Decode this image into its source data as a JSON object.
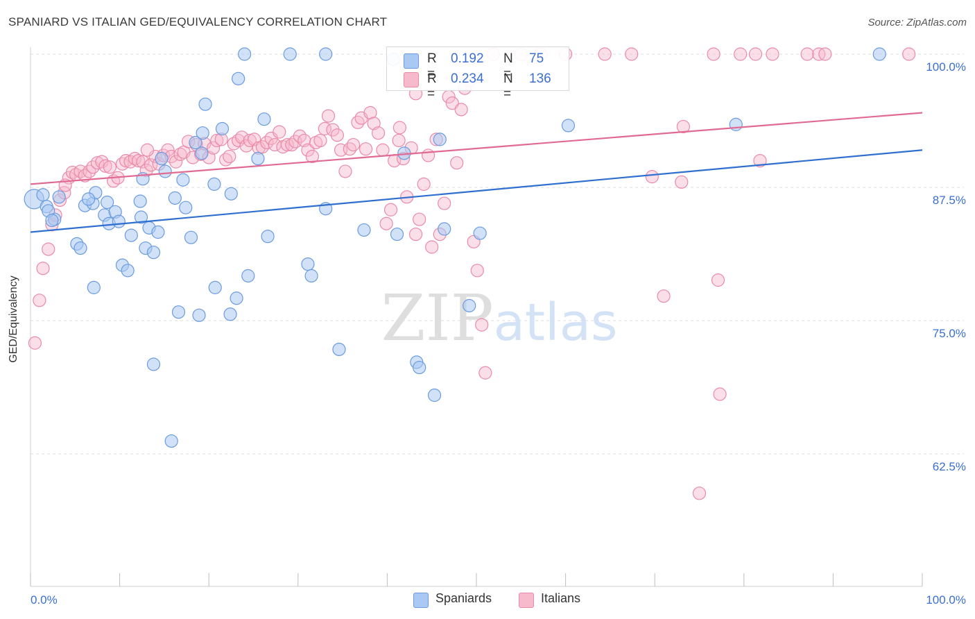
{
  "title": "SPANIARD VS ITALIAN GED/EQUIVALENCY CORRELATION CHART",
  "source": "Source: ZipAtlas.com",
  "watermark": "ZIPatlas",
  "stats": {
    "r_label": "R =",
    "n_label": "N =",
    "spaniards": {
      "r": "0.192",
      "n": "75"
    },
    "italians": {
      "r": "0.234",
      "n": "136"
    }
  },
  "legend": {
    "spaniards": "Spaniards",
    "italians": "Italians"
  },
  "colors": {
    "spaniards_fill": "#a9c9f2",
    "spaniards_stroke": "#6a9be0",
    "spaniards_line": "#2e6fcf",
    "italians_fill": "#f7b9cc",
    "italians_stroke": "#ea8aa8",
    "italians_line": "#e06a93",
    "axis_text": "#3a6fd1",
    "grid": "#dddddd"
  },
  "chart_data": {
    "type": "scatter",
    "title": "SPANIARD VS ITALIAN GED/EQUIVALENCY CORRELATION CHART",
    "xlabel": "",
    "ylabel": "GED/Equivalency",
    "xlim": [
      0,
      100
    ],
    "ylim": [
      50,
      101.5
    ],
    "x_tick_labels": [
      "0.0%",
      "100.0%"
    ],
    "y_ticks": [
      62.5,
      75.0,
      87.5,
      100.0
    ],
    "y_tick_labels": [
      "62.5%",
      "75.0%",
      "87.5%",
      "100.0%"
    ],
    "grid": "horizontal dashed",
    "legend_position": "bottom-center",
    "series": [
      {
        "name": "Spaniards",
        "r": 0.192,
        "n": 75,
        "trend": [
          [
            0,
            83.3
          ],
          [
            100,
            91.0
          ]
        ],
        "points": [
          [
            0.4,
            86.4
          ],
          [
            1.4,
            86.8
          ],
          [
            1.8,
            85.7
          ],
          [
            2.7,
            84.5
          ],
          [
            3.2,
            86.6
          ],
          [
            2.0,
            85.3
          ],
          [
            5.2,
            82.2
          ],
          [
            5.6,
            81.8
          ],
          [
            6.1,
            85.8
          ],
          [
            7.0,
            86.0
          ],
          [
            7.3,
            87.0
          ],
          [
            7.1,
            78.1
          ],
          [
            8.3,
            84.9
          ],
          [
            8.8,
            84.1
          ],
          [
            9.5,
            85.2
          ],
          [
            9.9,
            84.3
          ],
          [
            10.3,
            80.2
          ],
          [
            10.9,
            79.7
          ],
          [
            11.3,
            83.0
          ],
          [
            12.3,
            86.2
          ],
          [
            12.4,
            84.7
          ],
          [
            12.9,
            81.8
          ],
          [
            13.3,
            83.7
          ],
          [
            13.8,
            81.4
          ],
          [
            14.3,
            83.3
          ],
          [
            15.1,
            89.0
          ],
          [
            13.8,
            70.9
          ],
          [
            15.8,
            63.7
          ],
          [
            16.2,
            86.5
          ],
          [
            16.6,
            75.8
          ],
          [
            17.1,
            88.2
          ],
          [
            17.4,
            85.6
          ],
          [
            18.0,
            82.8
          ],
          [
            18.5,
            91.7
          ],
          [
            18.9,
            75.5
          ],
          [
            19.2,
            90.7
          ],
          [
            19.6,
            95.3
          ],
          [
            20.6,
            87.8
          ],
          [
            20.7,
            78.1
          ],
          [
            21.5,
            93.0
          ],
          [
            22.4,
            75.6
          ],
          [
            22.5,
            86.9
          ],
          [
            23.1,
            77.1
          ],
          [
            23.3,
            97.7
          ],
          [
            24.4,
            79.2
          ],
          [
            25.5,
            90.2
          ],
          [
            26.6,
            82.9
          ],
          [
            24.0,
            100.0
          ],
          [
            29.1,
            100.0
          ],
          [
            33.1,
            100.0
          ],
          [
            31.1,
            80.3
          ],
          [
            31.5,
            79.2
          ],
          [
            33.1,
            85.5
          ],
          [
            34.6,
            72.3
          ],
          [
            37.4,
            83.5
          ],
          [
            41.1,
            83.1
          ],
          [
            41.9,
            90.7
          ],
          [
            43.3,
            71.1
          ],
          [
            43.6,
            70.6
          ],
          [
            45.3,
            68.0
          ],
          [
            45.9,
            92.0
          ],
          [
            46.4,
            83.6
          ],
          [
            49.2,
            76.4
          ],
          [
            50.4,
            83.2
          ],
          [
            60.3,
            93.3
          ],
          [
            79.1,
            93.4
          ],
          [
            95.2,
            100.0
          ],
          [
            40.7,
            99.5
          ],
          [
            2.4,
            84.4
          ],
          [
            8.6,
            86.1
          ],
          [
            19.3,
            92.6
          ],
          [
            14.7,
            90.2
          ],
          [
            6.5,
            86.4
          ],
          [
            26.2,
            93.9
          ],
          [
            12.6,
            88.3
          ]
        ]
      },
      {
        "name": "Italians",
        "r": 0.234,
        "n": 136,
        "trend": [
          [
            0,
            87.8
          ],
          [
            100,
            94.5
          ]
        ],
        "points": [
          [
            0.5,
            72.9
          ],
          [
            1.0,
            76.9
          ],
          [
            1.4,
            79.9
          ],
          [
            2.0,
            81.7
          ],
          [
            2.4,
            84.0
          ],
          [
            2.8,
            84.9
          ],
          [
            3.3,
            86.3
          ],
          [
            3.8,
            87.0
          ],
          [
            4.3,
            88.4
          ],
          [
            4.7,
            88.9
          ],
          [
            5.1,
            88.7
          ],
          [
            5.6,
            89.0
          ],
          [
            6.1,
            88.6
          ],
          [
            6.6,
            89.0
          ],
          [
            7.0,
            89.4
          ],
          [
            7.5,
            89.8
          ],
          [
            8.0,
            89.9
          ],
          [
            8.4,
            89.5
          ],
          [
            8.9,
            89.4
          ],
          [
            9.3,
            88.1
          ],
          [
            9.8,
            88.4
          ],
          [
            10.3,
            89.7
          ],
          [
            10.7,
            90.0
          ],
          [
            11.2,
            89.9
          ],
          [
            11.7,
            90.2
          ],
          [
            12.1,
            90.0
          ],
          [
            12.6,
            89.9
          ],
          [
            13.0,
            89.1
          ],
          [
            13.5,
            89.6
          ],
          [
            14.0,
            90.4
          ],
          [
            14.4,
            89.7
          ],
          [
            14.9,
            90.5
          ],
          [
            15.4,
            91.0
          ],
          [
            15.8,
            90.4
          ],
          [
            16.3,
            89.9
          ],
          [
            16.8,
            90.6
          ],
          [
            17.2,
            90.8
          ],
          [
            17.7,
            91.8
          ],
          [
            18.2,
            90.3
          ],
          [
            18.6,
            91.5
          ],
          [
            19.1,
            90.6
          ],
          [
            19.5,
            91.6
          ],
          [
            20.0,
            90.3
          ],
          [
            20.5,
            91.2
          ],
          [
            20.9,
            91.9
          ],
          [
            21.4,
            92.0
          ],
          [
            21.9,
            90.1
          ],
          [
            22.3,
            90.4
          ],
          [
            22.8,
            91.6
          ],
          [
            23.3,
            91.9
          ],
          [
            23.7,
            92.2
          ],
          [
            24.2,
            91.4
          ],
          [
            24.6,
            91.9
          ],
          [
            25.1,
            92.0
          ],
          [
            25.6,
            91.2
          ],
          [
            26.0,
            91.3
          ],
          [
            26.5,
            91.7
          ],
          [
            27.0,
            92.1
          ],
          [
            27.4,
            91.5
          ],
          [
            27.9,
            92.7
          ],
          [
            28.3,
            91.3
          ],
          [
            28.8,
            91.5
          ],
          [
            29.3,
            91.5
          ],
          [
            29.7,
            91.8
          ],
          [
            30.2,
            92.3
          ],
          [
            30.7,
            91.9
          ],
          [
            31.1,
            91.0
          ],
          [
            31.6,
            90.4
          ],
          [
            32.0,
            91.7
          ],
          [
            32.5,
            91.9
          ],
          [
            33.0,
            93.0
          ],
          [
            33.4,
            94.2
          ],
          [
            33.9,
            92.9
          ],
          [
            34.4,
            92.4
          ],
          [
            34.8,
            91.0
          ],
          [
            35.3,
            89.0
          ],
          [
            35.8,
            91.1
          ],
          [
            36.2,
            91.5
          ],
          [
            36.7,
            93.6
          ],
          [
            37.1,
            94.0
          ],
          [
            37.6,
            91.1
          ],
          [
            38.1,
            94.5
          ],
          [
            38.5,
            93.5
          ],
          [
            39.0,
            92.6
          ],
          [
            39.5,
            91.0
          ],
          [
            39.9,
            84.1
          ],
          [
            40.4,
            85.4
          ],
          [
            40.8,
            90.0
          ],
          [
            41.3,
            91.9
          ],
          [
            41.8,
            90.2
          ],
          [
            42.2,
            86.6
          ],
          [
            42.7,
            91.2
          ],
          [
            43.2,
            83.1
          ],
          [
            43.6,
            84.5
          ],
          [
            44.1,
            87.8
          ],
          [
            44.6,
            90.5
          ],
          [
            45.0,
            81.9
          ],
          [
            45.5,
            92.0
          ],
          [
            45.9,
            83.1
          ],
          [
            46.4,
            86.0
          ],
          [
            46.9,
            96.0
          ],
          [
            47.3,
            95.4
          ],
          [
            47.8,
            89.8
          ],
          [
            48.3,
            94.8
          ],
          [
            48.7,
            96.8
          ],
          [
            49.2,
            97.5
          ],
          [
            49.7,
            82.4
          ],
          [
            50.1,
            79.7
          ],
          [
            50.6,
            74.6
          ],
          [
            51.0,
            70.1
          ],
          [
            57.2,
            100.0
          ],
          [
            60.0,
            100.0
          ],
          [
            64.4,
            100.0
          ],
          [
            67.4,
            100.0
          ],
          [
            69.7,
            88.5
          ],
          [
            71.0,
            77.3
          ],
          [
            73.0,
            88.0
          ],
          [
            73.2,
            93.2
          ],
          [
            75.0,
            58.8
          ],
          [
            76.6,
            100.0
          ],
          [
            77.1,
            78.8
          ],
          [
            77.3,
            68.1
          ],
          [
            79.6,
            100.0
          ],
          [
            81.3,
            100.0
          ],
          [
            81.8,
            90.0
          ],
          [
            83.2,
            100.0
          ],
          [
            87.1,
            100.0
          ],
          [
            88.4,
            100.0
          ],
          [
            89.1,
            100.0
          ],
          [
            98.5,
            100.0
          ],
          [
            43.2,
            96.3
          ],
          [
            41.4,
            93.1
          ],
          [
            55.0,
            100.0
          ],
          [
            51.9,
            100.0
          ],
          [
            13.1,
            91.0
          ],
          [
            3.9,
            87.7
          ]
        ]
      }
    ]
  }
}
